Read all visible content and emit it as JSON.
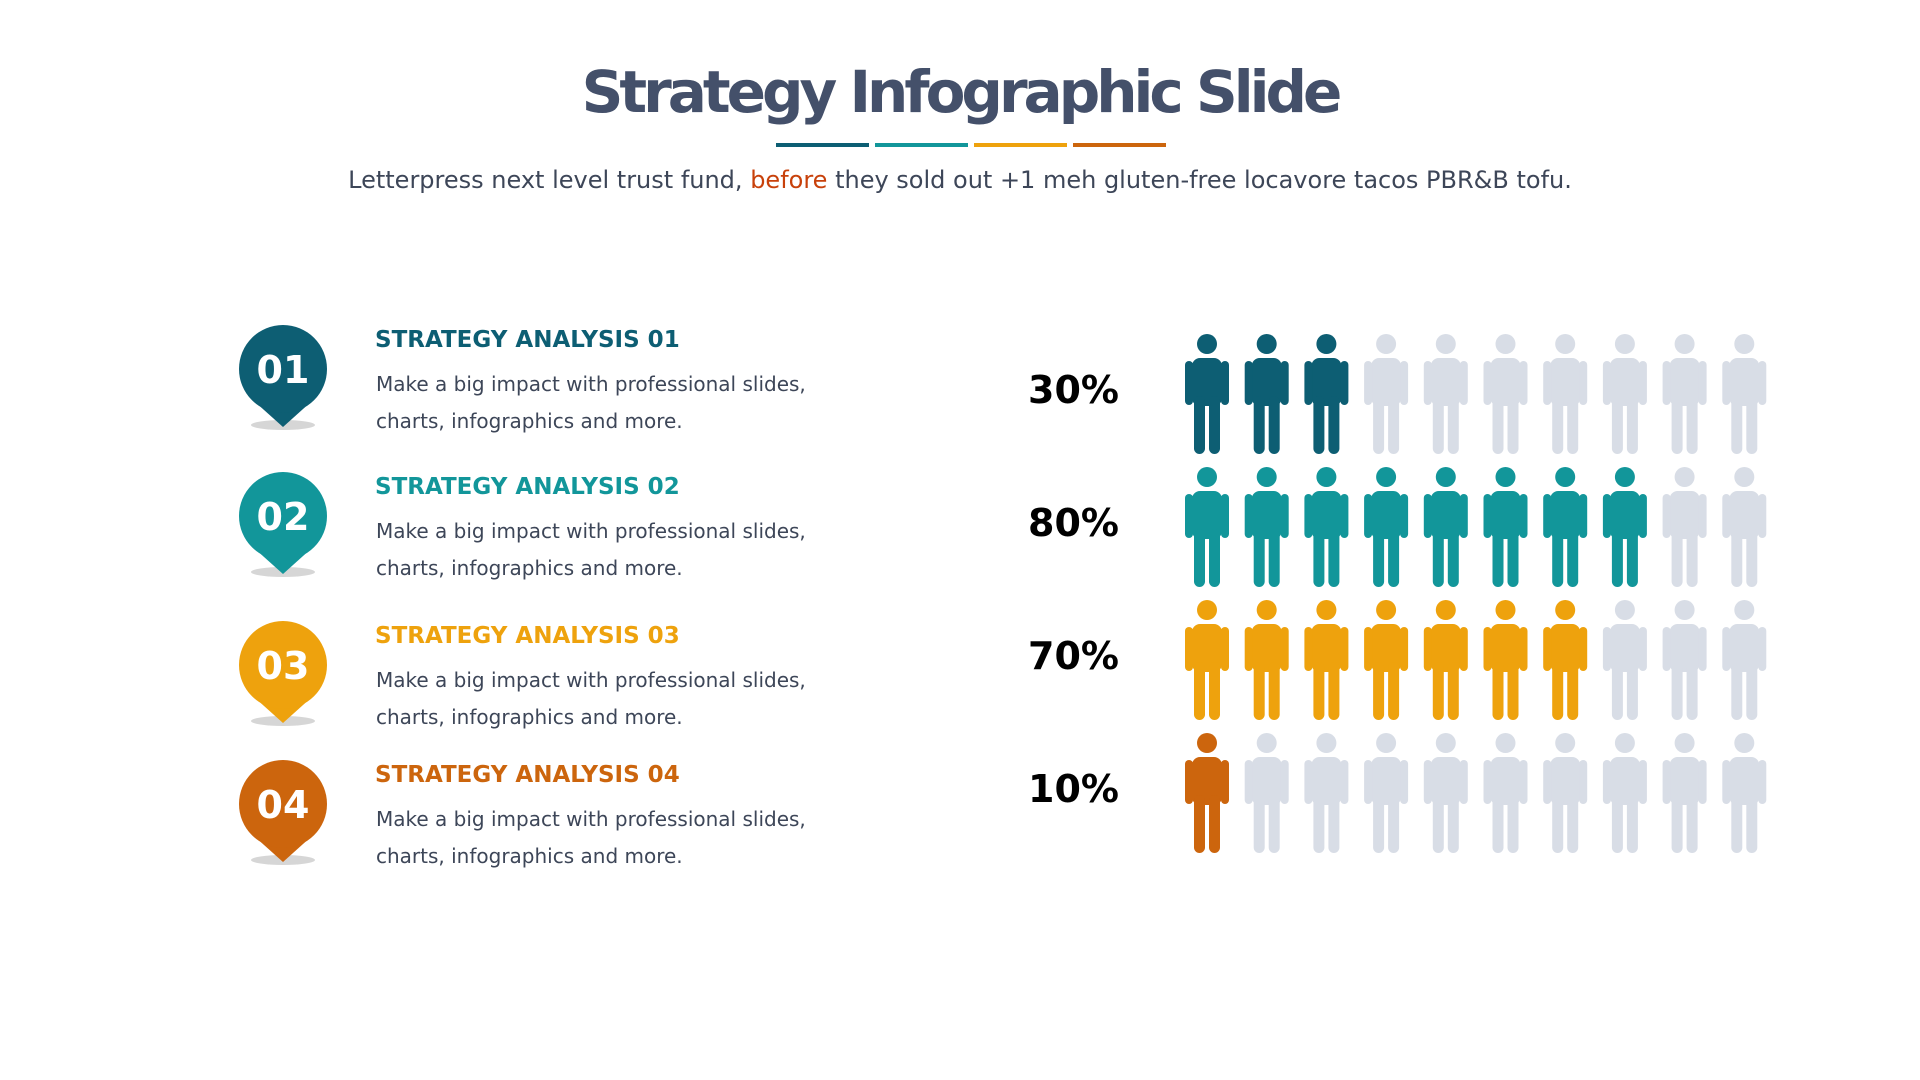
{
  "header": {
    "title": "Strategy Infographic Slide",
    "subtitle": [
      "Letterpress next level trust fund,",
      "before",
      "they sold out +1 meh gluten-free locavore tacos PBR&B tofu."
    ]
  },
  "items": [
    {
      "number": "01",
      "title": "STRATEGY ANALYSIS 01",
      "text": "Make a big impact with professional slides, charts, infographics and more."
    },
    {
      "number": "02",
      "title": "STRATEGY ANALYSIS 02",
      "text": "Make a big impact with professional slides, charts, infographics and more."
    },
    {
      "number": "03",
      "title": "STRATEGY ANALYSIS 03",
      "text": "Make a big impact with professional slides, charts, infographics and more."
    },
    {
      "number": "04",
      "title": "STRATEGY ANALYSIS 04",
      "text": "Make a big impact with professional slides, charts, infographics and more."
    }
  ],
  "chart_data": {
    "type": "pictograph",
    "values": [
      30,
      80,
      70,
      10
    ],
    "value_labels": [
      "30%",
      "80%",
      "70%",
      "10%"
    ],
    "xlim": [
      0,
      100
    ],
    "colors": [
      "#0d5e73",
      "#12969a",
      "#eea20d",
      "#cc650d"
    ],
    "empty_color": "#d8dde6"
  }
}
